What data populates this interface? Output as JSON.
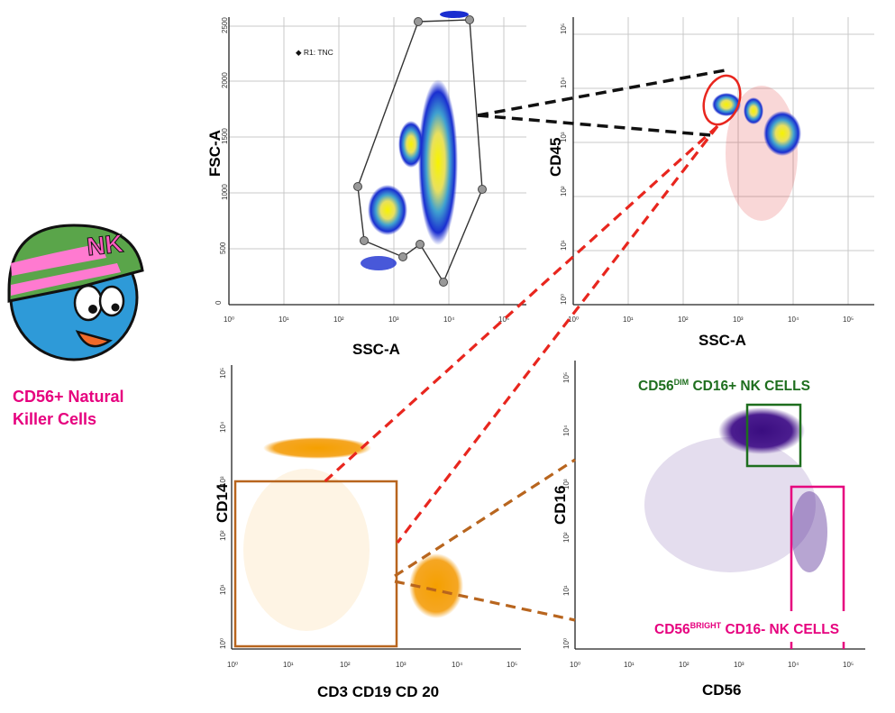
{
  "mascot": {
    "helmet_text": "NK",
    "caption": "CD56+ Natural Killer Cells"
  },
  "colors": {
    "accent_pink": "#e6007e",
    "gate_green": "#1e6e1e",
    "gate_brown": "#b8651e",
    "connector_red": "#e8261e",
    "events_orange": "#f5a623",
    "events_purple": "#4b1d8f",
    "events_red": "#e02020",
    "density_blue": "#1a2ed0"
  },
  "panels": [
    {
      "id": "fsc-ssc",
      "xlabel": "SSC-A",
      "ylabel": "FSC-A",
      "xticks": [
        "10⁰",
        "10¹",
        "10²",
        "10³",
        "10⁴",
        "10⁵"
      ],
      "yticks": [
        "0",
        "500",
        "1000",
        "1500",
        "2000",
        "2500"
      ],
      "legend": "◆ R1: TNC"
    },
    {
      "id": "cd45-ssc",
      "xlabel": "SSC-A",
      "ylabel": "CD45",
      "xticks": [
        "10⁰",
        "10¹",
        "10²",
        "10³",
        "10⁴",
        "10⁵"
      ],
      "yticks": [
        "10⁰",
        "10¹",
        "10²",
        "10³",
        "10⁴",
        "10⁵"
      ]
    },
    {
      "id": "cd14-cd3",
      "xlabel": "CD3 CD19 CD 20",
      "ylabel": "CD14",
      "xticks": [
        "10⁰",
        "10¹",
        "10²",
        "10³",
        "10⁴",
        "10⁵"
      ],
      "yticks": [
        "10⁰",
        "10¹",
        "10²",
        "10³",
        "10⁴",
        "10⁵"
      ]
    },
    {
      "id": "cd16-cd56",
      "xlabel": "CD56",
      "ylabel": "CD16",
      "xticks": [
        "10⁰",
        "10¹",
        "10²",
        "10³",
        "10⁴",
        "10⁵"
      ],
      "yticks": [
        "10⁰",
        "10¹",
        "10²",
        "10³",
        "10⁴",
        "10⁵"
      ]
    }
  ],
  "gates": {
    "dim": {
      "base": "CD56",
      "sup": "DIM",
      "rest": " CD16+ NK CELLS"
    },
    "bright": {
      "base": "CD56",
      "sup": "BRIGHT",
      "rest": " CD16- NK CELLS"
    }
  }
}
